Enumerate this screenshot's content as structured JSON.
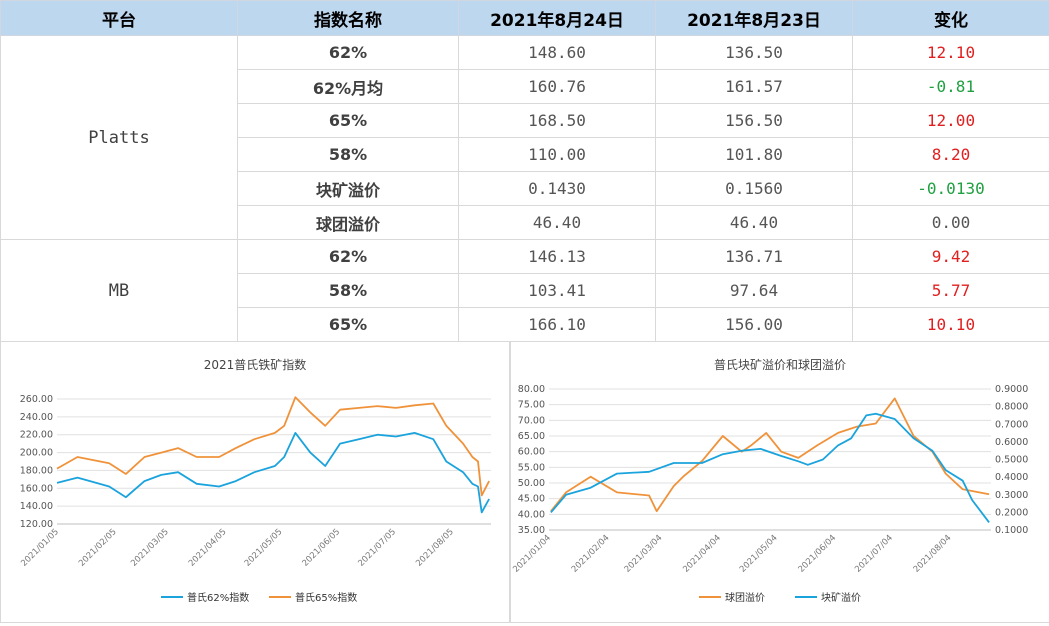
{
  "table": {
    "headers": [
      "平台",
      "指数名称",
      "2021年8月24日",
      "2021年8月23日",
      "变化"
    ],
    "groups": [
      {
        "platform": "Platts",
        "rows": [
          {
            "name": "62%",
            "d1": "148.60",
            "d2": "136.50",
            "change": "12.10",
            "sign": "pos"
          },
          {
            "name": "62%月均",
            "d1": "160.76",
            "d2": "161.57",
            "change": "-0.81",
            "sign": "neg"
          },
          {
            "name": "65%",
            "d1": "168.50",
            "d2": "156.50",
            "change": "12.00",
            "sign": "pos"
          },
          {
            "name": "58%",
            "d1": "110.00",
            "d2": "101.80",
            "change": "8.20",
            "sign": "pos"
          },
          {
            "name": "块矿溢价",
            "d1": "0.1430",
            "d2": "0.1560",
            "change": "-0.0130",
            "sign": "neg"
          },
          {
            "name": "球团溢价",
            "d1": "46.40",
            "d2": "46.40",
            "change": "0.00",
            "sign": "zero"
          }
        ]
      },
      {
        "platform": "MB",
        "rows": [
          {
            "name": "62%",
            "d1": "146.13",
            "d2": "136.71",
            "change": "9.42",
            "sign": "pos"
          },
          {
            "name": "58%",
            "d1": "103.41",
            "d2": "97.64",
            "change": "5.77",
            "sign": "pos"
          },
          {
            "name": "65%",
            "d1": "166.10",
            "d2": "156.00",
            "change": "10.10",
            "sign": "pos"
          }
        ]
      }
    ]
  },
  "colors": {
    "blue": "#1aa3dc",
    "orange": "#f0923a"
  },
  "chart_data": [
    {
      "type": "line",
      "title": "2021普氏铁矿指数",
      "x_ticks": [
        "2021/01/05",
        "2021/02/05",
        "2021/03/05",
        "2021/04/05",
        "2021/05/05",
        "2021/06/05",
        "2021/07/05",
        "2021/08/05"
      ],
      "ylim": [
        120,
        260
      ],
      "y_ticks": [
        "120.00",
        "140.00",
        "160.00",
        "180.00",
        "200.00",
        "220.00",
        "240.00",
        "260.00"
      ],
      "grid": true,
      "legend": "bottom",
      "series": [
        {
          "name": "普氏62%指数",
          "color": "#1aa3dc",
          "x": [
            "2021/01/04",
            "2021/01/15",
            "2021/02/01",
            "2021/02/10",
            "2021/02/20",
            "2021/03/01",
            "2021/03/10",
            "2021/03/20",
            "2021/04/01",
            "2021/04/10",
            "2021/04/20",
            "2021/05/01",
            "2021/05/06",
            "2021/05/12",
            "2021/05/20",
            "2021/05/28",
            "2021/06/05",
            "2021/06/15",
            "2021/06/25",
            "2021/07/05",
            "2021/07/15",
            "2021/07/25",
            "2021/08/01",
            "2021/08/10",
            "2021/08/15",
            "2021/08/18",
            "2021/08/20",
            "2021/08/24"
          ],
          "values": [
            166,
            172,
            162,
            150,
            168,
            175,
            178,
            165,
            162,
            168,
            178,
            185,
            195,
            222,
            200,
            185,
            210,
            215,
            220,
            218,
            222,
            215,
            190,
            178,
            165,
            162,
            133,
            148
          ]
        },
        {
          "name": "普氏65%指数",
          "color": "#f0923a",
          "x": [
            "2021/01/04",
            "2021/01/15",
            "2021/02/01",
            "2021/02/10",
            "2021/02/20",
            "2021/03/01",
            "2021/03/10",
            "2021/03/20",
            "2021/04/01",
            "2021/04/10",
            "2021/04/20",
            "2021/05/01",
            "2021/05/06",
            "2021/05/12",
            "2021/05/20",
            "2021/05/28",
            "2021/06/05",
            "2021/06/15",
            "2021/06/25",
            "2021/07/05",
            "2021/07/15",
            "2021/07/25",
            "2021/08/01",
            "2021/08/10",
            "2021/08/15",
            "2021/08/18",
            "2021/08/20",
            "2021/08/24"
          ],
          "values": [
            182,
            195,
            188,
            176,
            195,
            200,
            205,
            195,
            195,
            205,
            215,
            222,
            230,
            262,
            245,
            230,
            248,
            250,
            252,
            250,
            253,
            255,
            230,
            210,
            195,
            190,
            152,
            168
          ]
        }
      ]
    },
    {
      "type": "line",
      "title": "普氏块矿溢价和球团溢价",
      "x_ticks": [
        "2021/01/04",
        "2021/02/04",
        "2021/03/04",
        "2021/04/04",
        "2021/05/04",
        "2021/06/04",
        "2021/07/04",
        "2021/08/04"
      ],
      "ylim_left": [
        35,
        80
      ],
      "ylim_right": [
        0.1,
        0.9
      ],
      "y_ticks_left": [
        "35.00",
        "40.00",
        "45.00",
        "50.00",
        "55.00",
        "60.00",
        "65.00",
        "70.00",
        "75.00",
        "80.00"
      ],
      "y_ticks_right": [
        "0.1000",
        "0.2000",
        "0.3000",
        "0.4000",
        "0.5000",
        "0.6000",
        "0.7000",
        "0.8000",
        "0.9000"
      ],
      "grid": true,
      "legend": "bottom",
      "series": [
        {
          "name": "球团溢价",
          "color": "#f0923a",
          "axis": "left",
          "x": [
            "2021/01/04",
            "2021/01/12",
            "2021/01/25",
            "2021/02/08",
            "2021/02/25",
            "2021/03/01",
            "2021/03/10",
            "2021/03/15",
            "2021/03/25",
            "2021/04/05",
            "2021/04/15",
            "2021/04/20",
            "2021/04/28",
            "2021/05/06",
            "2021/05/15",
            "2021/05/25",
            "2021/06/05",
            "2021/06/15",
            "2021/06/25",
            "2021/07/05",
            "2021/07/15",
            "2021/07/25",
            "2021/08/01",
            "2021/08/10",
            "2021/08/24"
          ],
          "values": [
            41,
            47,
            52,
            47,
            46,
            41,
            49,
            52,
            57,
            65,
            60,
            62,
            66,
            60,
            58,
            62,
            66,
            68,
            69,
            77,
            65,
            60,
            53,
            48,
            46.4
          ]
        },
        {
          "name": "块矿溢价",
          "color": "#1aa3dc",
          "axis": "right",
          "x": [
            "2021/01/04",
            "2021/01/12",
            "2021/01/25",
            "2021/02/08",
            "2021/02/25",
            "2021/03/10",
            "2021/03/25",
            "2021/04/05",
            "2021/04/15",
            "2021/04/25",
            "2021/05/06",
            "2021/05/15",
            "2021/05/20",
            "2021/05/28",
            "2021/06/05",
            "2021/06/12",
            "2021/06/20",
            "2021/06/25",
            "2021/07/05",
            "2021/07/15",
            "2021/07/25",
            "2021/08/01",
            "2021/08/10",
            "2021/08/15",
            "2021/08/24"
          ],
          "values": [
            0.2,
            0.3,
            0.34,
            0.42,
            0.43,
            0.48,
            0.48,
            0.53,
            0.55,
            0.56,
            0.52,
            0.49,
            0.47,
            0.5,
            0.58,
            0.62,
            0.75,
            0.76,
            0.73,
            0.62,
            0.55,
            0.44,
            0.38,
            0.27,
            0.143
          ]
        }
      ]
    }
  ]
}
